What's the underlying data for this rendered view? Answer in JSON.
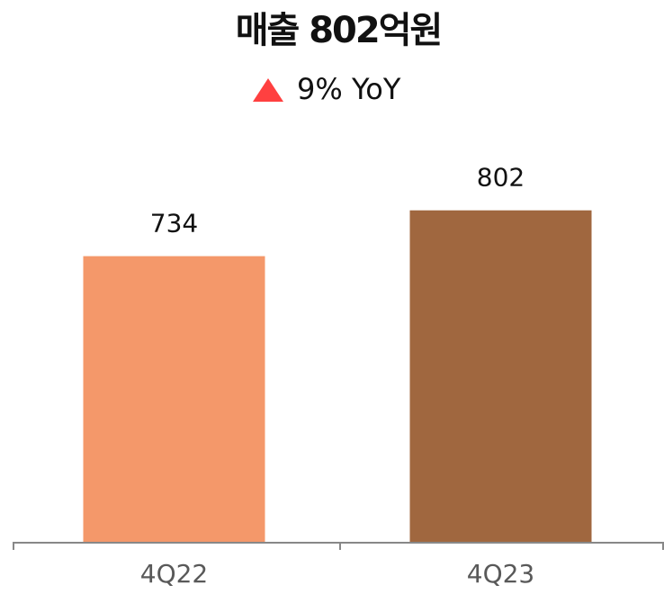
{
  "chart_data": {
    "type": "bar",
    "title": "매출 802억원",
    "subtitle": "9% YoY",
    "categories": [
      "4Q22",
      "4Q23"
    ],
    "values": [
      734,
      802
    ],
    "colors": [
      "#f4986a",
      "#a0673f"
    ],
    "ylim": [
      310,
      1000
    ]
  }
}
